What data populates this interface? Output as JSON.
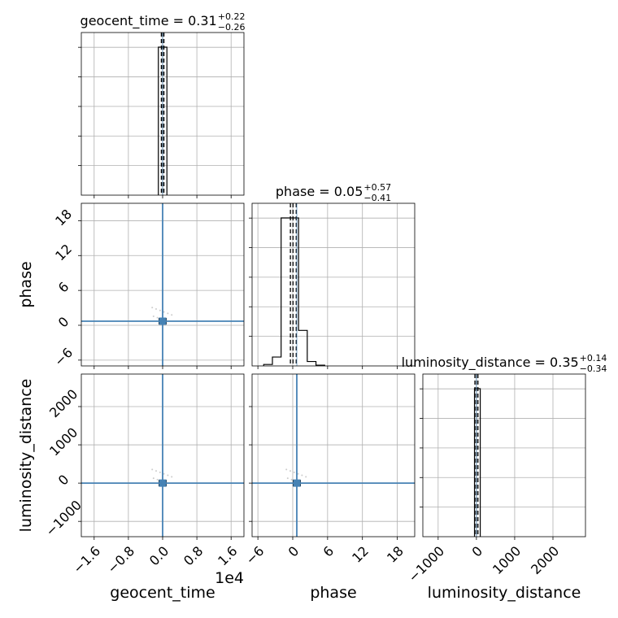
{
  "chart_data": {
    "type": "corner",
    "parameters": [
      "geocent_time",
      "phase",
      "luminosity_distance"
    ],
    "titles": [
      {
        "name": "geocent_time",
        "median": "0.31",
        "plus": "+0.22",
        "minus": "−0.26"
      },
      {
        "name": "phase",
        "median": "0.05",
        "plus": "+0.57",
        "minus": "−0.41"
      },
      {
        "name": "luminosity_distance",
        "median": "0.35",
        "plus": "+0.14",
        "minus": "−0.34"
      }
    ],
    "axis_ranges": {
      "geocent_time": [
        -1.9,
        1.9
      ],
      "phase": [
        -7,
        21
      ],
      "luminosity_distance": [
        -1400,
        2850
      ]
    },
    "x_scale_label": "1e4",
    "truths": {
      "geocent_time": 0.0,
      "phase": 0.7,
      "luminosity_distance": 0.0
    },
    "ticks": {
      "geocent_time": [
        -1.6,
        -0.8,
        0.0,
        0.8,
        1.6
      ],
      "phase": [
        -6,
        0,
        6,
        12,
        18
      ],
      "luminosity_distance": [
        -1000,
        0,
        1000,
        2000
      ]
    },
    "tick_labels": {
      "geocent_time": [
        "−1.6",
        "−0.8",
        "0.0",
        "0.8",
        "1.6"
      ],
      "phase": [
        "−6",
        "0",
        "6",
        "12",
        "18"
      ],
      "luminosity_distance": [
        "−1000",
        "0",
        "1000",
        "2000"
      ]
    },
    "histograms": {
      "geocent_time": {
        "edges": [
          -0.1,
          0.1
        ],
        "counts": [
          1.0
        ]
      },
      "phase": {
        "edges": [
          -5,
          -3.5,
          -2,
          -0.5,
          1,
          2.5,
          4,
          5.5
        ],
        "counts": [
          0.01,
          0.06,
          1.0,
          1.0,
          0.24,
          0.03,
          0.005
        ]
      },
      "luminosity_distance": {
        "edges": [
          -50,
          100
        ],
        "counts": [
          1.0
        ]
      }
    },
    "quantile_lines": {
      "geocent_time": [
        -0.03,
        0.0,
        0.03
      ],
      "phase": [
        -0.4,
        0.05,
        0.6
      ],
      "luminosity_distance": [
        -40,
        0,
        40
      ]
    },
    "grid": true,
    "scatter_color": "#4682b4",
    "truth_color": "#4682b4",
    "hist_color": "#000000"
  }
}
